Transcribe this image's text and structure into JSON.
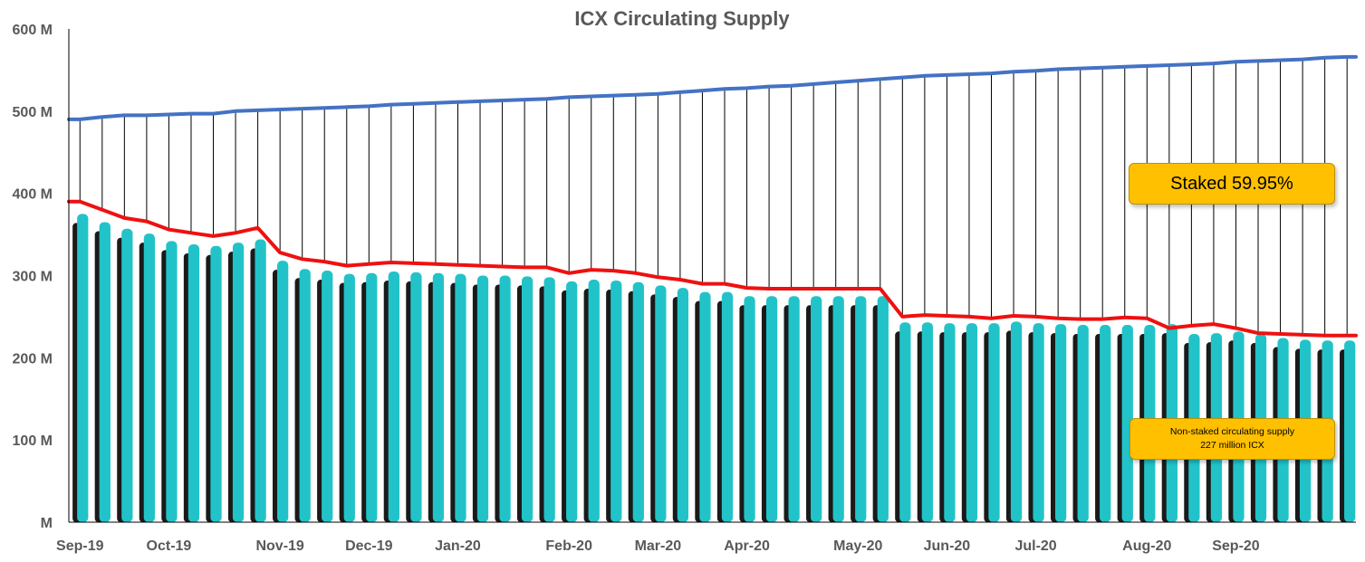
{
  "chart_data": {
    "type": "bar",
    "title": "ICX Circulating Supply",
    "y_unit": "M",
    "yticks": [
      "M",
      "100 M",
      "200 M",
      "300 M",
      "400 M",
      "500 M",
      "600 M"
    ],
    "ylim": [
      0,
      600
    ],
    "xtick_labels": [
      "Sep-19",
      "Oct-19",
      "Nov-19",
      "Dec-19",
      "Jan-20",
      "Feb-20",
      "Mar-20",
      "Apr-20",
      "May-20",
      "Jun-20",
      "Jul-20",
      "Aug-20",
      "Sep-20"
    ],
    "xtick_bar_index": [
      0,
      4,
      9,
      13,
      17,
      22,
      26,
      30,
      35,
      39,
      43,
      48,
      52
    ],
    "grid": false,
    "series": [
      {
        "kind": "bar",
        "color": "#22c3c8",
        "shadow_color": "#1a1a1a",
        "values": [
          375,
          365,
          357,
          351,
          342,
          338,
          336,
          340,
          344,
          318,
          308,
          306,
          302,
          303,
          305,
          304,
          303,
          302,
          300,
          300,
          299,
          298,
          293,
          295,
          294,
          292,
          288,
          285,
          280,
          280,
          275,
          275,
          275,
          275,
          275,
          275,
          275,
          243,
          243,
          242,
          242,
          242,
          244,
          242,
          241,
          240,
          240,
          240,
          240,
          241,
          229,
          230,
          232,
          229,
          224,
          222,
          221,
          221
        ]
      },
      {
        "kind": "line",
        "color": "#ee1111",
        "values": [
          390,
          380,
          370,
          366,
          356,
          352,
          348,
          352,
          358,
          328,
          320,
          317,
          312,
          314,
          316,
          315,
          314,
          313,
          312,
          311,
          310,
          310,
          303,
          307,
          306,
          303,
          298,
          295,
          290,
          290,
          285,
          284,
          284,
          284,
          284,
          284,
          284,
          250,
          252,
          251,
          250,
          248,
          251,
          250,
          248,
          247,
          247,
          249,
          248,
          236,
          239,
          241,
          236,
          230,
          229,
          228,
          227,
          227
        ]
      },
      {
        "kind": "line",
        "color": "#4472c4",
        "values": [
          490,
          493,
          495,
          495,
          496,
          497,
          497,
          500,
          501,
          502,
          503,
          504,
          505,
          506,
          508,
          509,
          510,
          511,
          512,
          513,
          514,
          515,
          517,
          518,
          519,
          520,
          521,
          523,
          525,
          527,
          528,
          530,
          531,
          533,
          535,
          537,
          539,
          541,
          543,
          544,
          545,
          546,
          548,
          549,
          551,
          552,
          553,
          554,
          555,
          556,
          557,
          558,
          560,
          561,
          562,
          563,
          565,
          566
        ]
      }
    ],
    "annotations": [
      {
        "id": "staked",
        "text": "Staked 59.95%"
      },
      {
        "id": "nonstaked",
        "line1": "Non-staked circulating supply",
        "line2": "227 million ICX"
      }
    ]
  }
}
